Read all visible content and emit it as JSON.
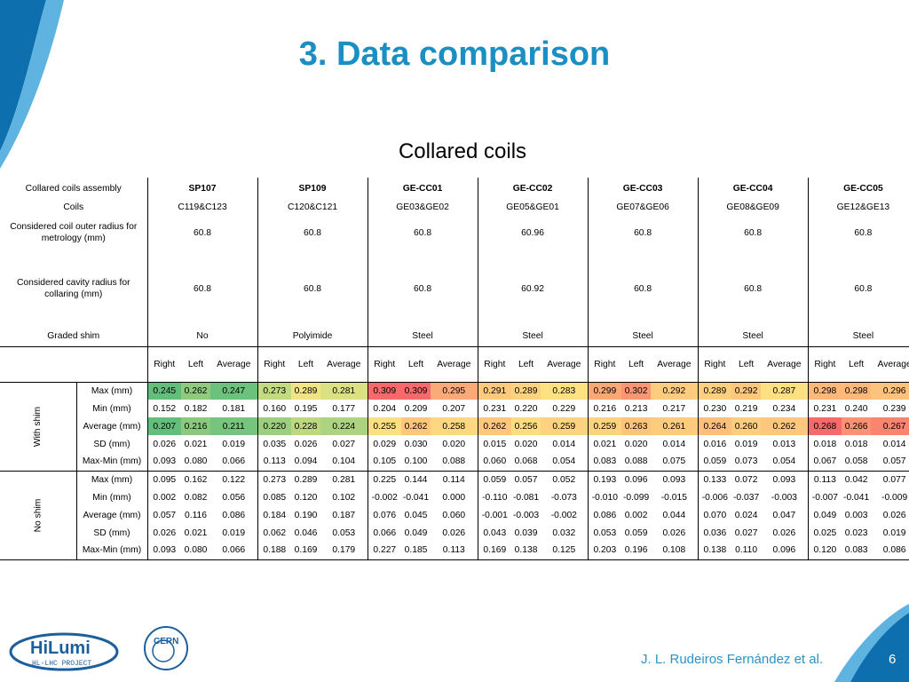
{
  "slide": {
    "title": "3. Data comparison",
    "subtitle": "Collared coils",
    "author": "J. L. Rudeiros Fernández et al.",
    "page_number": "6",
    "logo_hilumi_text": "HiLumi",
    "logo_hilumi_sub": "HL-LHC PROJECT",
    "logo_cern_text": "CERN"
  },
  "table": {
    "header_labels": {
      "assembly": "Collared coils assembly",
      "coils": "Coils",
      "outer_radius": "Considered coil outer radius for metrology (mm)",
      "cavity_radius": "Considered cavity radius for collaring (mm)",
      "graded_shim": "Graded shim"
    },
    "assemblies": [
      {
        "name": "SP107",
        "coils": "C119&C123",
        "outer": "60.8",
        "cavity": "60.8",
        "shim": "No"
      },
      {
        "name": "SP109",
        "coils": "C120&C121",
        "outer": "60.8",
        "cavity": "60.8",
        "shim": "Polyimide"
      },
      {
        "name": "GE-CC01",
        "coils": "GE03&GE02",
        "outer": "60.8",
        "cavity": "60.8",
        "shim": "Steel"
      },
      {
        "name": "GE-CC02",
        "coils": "GE05&GE01",
        "outer": "60.96",
        "cavity": "60.92",
        "shim": "Steel"
      },
      {
        "name": "GE-CC03",
        "coils": "GE07&GE06",
        "outer": "60.8",
        "cavity": "60.8",
        "shim": "Steel"
      },
      {
        "name": "GE-CC04",
        "coils": "GE08&GE09",
        "outer": "60.8",
        "cavity": "60.8",
        "shim": "Steel"
      },
      {
        "name": "GE-CC05",
        "coils": "GE12&GE13",
        "outer": "60.8",
        "cavity": "60.8",
        "shim": "Steel"
      }
    ],
    "sub_headers": [
      "Right",
      "Left",
      "Average"
    ],
    "groups": [
      {
        "label": "With shim",
        "rows": [
          {
            "metric": "Max (mm)",
            "values": [
              "0.245",
              "0.262",
              "0.247",
              "0.273",
              "0.289",
              "0.281",
              "0.309",
              "0.309",
              "0.295",
              "0.291",
              "0.289",
              "0.283",
              "0.299",
              "0.302",
              "0.292",
              "0.289",
              "0.292",
              "0.287",
              "0.298",
              "0.298",
              "0.296"
            ],
            "colors": [
              "#63be7b",
              "#8fcb7e",
              "#6cc17c",
              "#c2da80",
              "#f0e484",
              "#dbe182",
              "#f8696b",
              "#f8696b",
              "#fba978",
              "#fdc97d",
              "#fed380",
              "#fee282",
              "#fba877",
              "#fb9675",
              "#fdcc7e",
              "#fdd07f",
              "#fdc77d",
              "#fde081",
              "#fdb87a",
              "#fdb87a",
              "#fdc27c"
            ]
          },
          {
            "metric": "Min (mm)",
            "values": [
              "0.152",
              "0.182",
              "0.181",
              "0.160",
              "0.195",
              "0.177",
              "0.204",
              "0.209",
              "0.207",
              "0.231",
              "0.220",
              "0.229",
              "0.216",
              "0.213",
              "0.217",
              "0.230",
              "0.219",
              "0.234",
              "0.231",
              "0.240",
              "0.239"
            ],
            "colors": []
          },
          {
            "metric": "Average (mm)",
            "values": [
              "0.207",
              "0.216",
              "0.211",
              "0.220",
              "0.228",
              "0.224",
              "0.255",
              "0.262",
              "0.258",
              "0.262",
              "0.256",
              "0.259",
              "0.259",
              "0.263",
              "0.261",
              "0.264",
              "0.260",
              "0.262",
              "0.268",
              "0.266",
              "0.267"
            ],
            "colors": [
              "#63be7b",
              "#8bc97e",
              "#76c47d",
              "#9cce7f",
              "#bdd881",
              "#aed380",
              "#fee082",
              "#fdc87d",
              "#fed881",
              "#fdc87d",
              "#fedd81",
              "#fdd380",
              "#fdd380",
              "#fdc57c",
              "#fdcb7e",
              "#fdbf7b",
              "#fdce7f",
              "#fdc87d",
              "#f8696b",
              "#fa9273",
              "#f98470"
            ]
          },
          {
            "metric": "SD (mm)",
            "values": [
              "0.026",
              "0.021",
              "0.019",
              "0.035",
              "0.026",
              "0.027",
              "0.029",
              "0.030",
              "0.020",
              "0.015",
              "0.020",
              "0.014",
              "0.021",
              "0.020",
              "0.014",
              "0.016",
              "0.019",
              "0.013",
              "0.018",
              "0.018",
              "0.014"
            ],
            "colors": []
          },
          {
            "metric": "Max-Min (mm)",
            "values": [
              "0.093",
              "0.080",
              "0.066",
              "0.113",
              "0.094",
              "0.104",
              "0.105",
              "0.100",
              "0.088",
              "0.060",
              "0.068",
              "0.054",
              "0.083",
              "0.088",
              "0.075",
              "0.059",
              "0.073",
              "0.054",
              "0.067",
              "0.058",
              "0.057"
            ],
            "colors": []
          }
        ]
      },
      {
        "label": "No shim",
        "rows": [
          {
            "metric": "Max (mm)",
            "values": [
              "0.095",
              "0.162",
              "0.122",
              "0.273",
              "0.289",
              "0.281",
              "0.225",
              "0.144",
              "0.114",
              "0.059",
              "0.057",
              "0.052",
              "0.193",
              "0.096",
              "0.093",
              "0.133",
              "0.072",
              "0.093",
              "0.113",
              "0.042",
              "0.077"
            ],
            "colors": []
          },
          {
            "metric": "Min (mm)",
            "values": [
              "0.002",
              "0.082",
              "0.056",
              "0.085",
              "0.120",
              "0.102",
              "-0.002",
              "-0.041",
              "0.000",
              "-0.110",
              "-0.081",
              "-0.073",
              "-0.010",
              "-0.099",
              "-0.015",
              "-0.006",
              "-0.037",
              "-0.003",
              "-0.007",
              "-0.041",
              "-0.009"
            ],
            "colors": []
          },
          {
            "metric": "Average (mm)",
            "values": [
              "0.057",
              "0.116",
              "0.086",
              "0.184",
              "0.190",
              "0.187",
              "0.076",
              "0.045",
              "0.060",
              "-0.001",
              "-0.003",
              "-0.002",
              "0.086",
              "0.002",
              "0.044",
              "0.070",
              "0.024",
              "0.047",
              "0.049",
              "0.003",
              "0.026"
            ],
            "colors": []
          },
          {
            "metric": "SD (mm)",
            "values": [
              "0.026",
              "0.021",
              "0.019",
              "0.062",
              "0.046",
              "0.053",
              "0.066",
              "0.049",
              "0.026",
              "0.043",
              "0.039",
              "0.032",
              "0.053",
              "0.059",
              "0.026",
              "0.036",
              "0.027",
              "0.026",
              "0.025",
              "0.023",
              "0.019"
            ],
            "colors": []
          },
          {
            "metric": "Max-Min (mm)",
            "values": [
              "0.093",
              "0.080",
              "0.066",
              "0.188",
              "0.169",
              "0.179",
              "0.227",
              "0.185",
              "0.113",
              "0.169",
              "0.138",
              "0.125",
              "0.203",
              "0.196",
              "0.108",
              "0.138",
              "0.110",
              "0.096",
              "0.120",
              "0.083",
              "0.086"
            ],
            "colors": []
          }
        ]
      }
    ]
  }
}
